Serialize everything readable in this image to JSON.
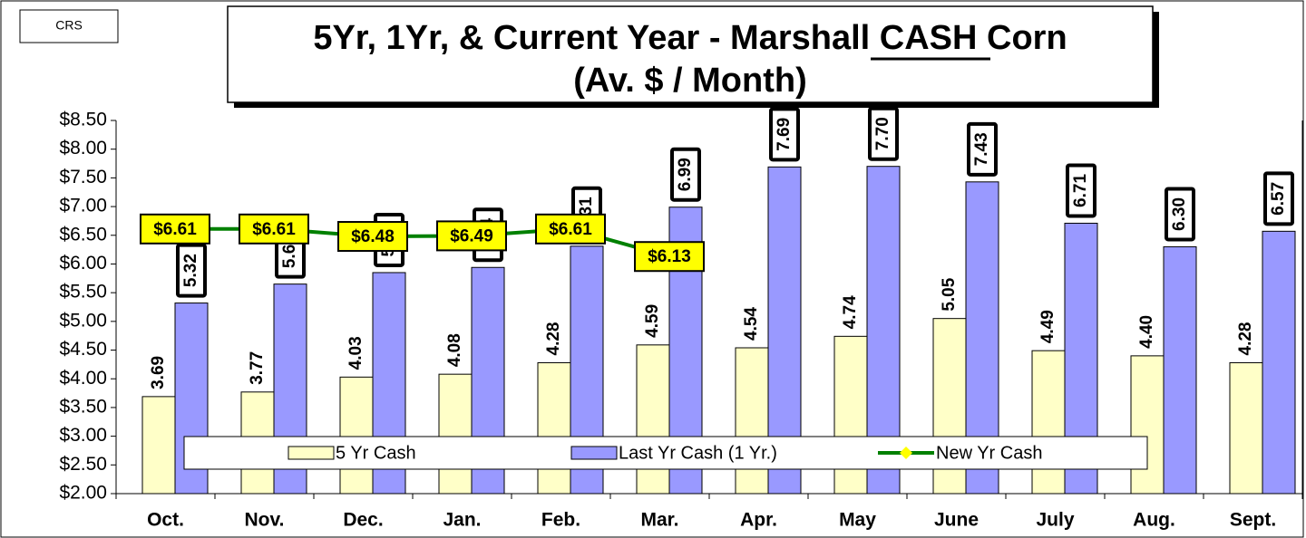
{
  "chart_data": {
    "type": "bar",
    "badge": "CRS",
    "title": "5Yr, 1Yr, & Current Year - Marshall CASH Corn",
    "subtitle": "(Av. $ / Month)",
    "categories": [
      "Oct.",
      "Nov.",
      "Dec.",
      "Jan.",
      "Feb.",
      "Mar.",
      "Apr.",
      "May",
      "June",
      "July",
      "Aug.",
      "Sept."
    ],
    "series": [
      {
        "name": "5 Yr Cash",
        "type": "bar",
        "color": "#ffffc8",
        "values": [
          3.69,
          3.77,
          4.03,
          4.08,
          4.28,
          4.59,
          4.54,
          4.74,
          5.05,
          4.49,
          4.4,
          4.28
        ],
        "value_labels": [
          "3.69",
          "3.77",
          "4.03",
          "4.08",
          "4.28",
          "4.59",
          "4.54",
          "4.74",
          "5.05",
          "4.49",
          "4.40",
          "4.28"
        ]
      },
      {
        "name": "Last Yr Cash (1 Yr.)",
        "type": "bar",
        "color": "#9999ff",
        "values": [
          5.32,
          5.65,
          5.85,
          5.94,
          6.31,
          6.99,
          7.69,
          7.7,
          7.43,
          6.71,
          6.3,
          6.57
        ],
        "value_labels": [
          "5.32",
          "5.65",
          "5.85",
          "5.94",
          "6.31",
          "6.99",
          "7.69",
          "7.70",
          "7.43",
          "6.71",
          "6.30",
          "6.57"
        ]
      },
      {
        "name": "New Yr Cash",
        "type": "line",
        "color": "#008000",
        "marker_color": "#ffff00",
        "values": [
          6.61,
          6.61,
          6.48,
          6.49,
          6.61,
          6.13,
          null,
          null,
          null,
          null,
          null,
          null
        ],
        "value_labels": [
          "$6.61",
          "$6.61",
          "$6.48",
          "$6.49",
          "$6.61",
          "$6.13",
          null,
          null,
          null,
          null,
          null,
          null
        ]
      }
    ],
    "ylim": [
      2.0,
      8.5
    ],
    "yticks": [
      {
        "value": 2.0,
        "label": "$2.00"
      },
      {
        "value": 2.5,
        "label": "$2.50"
      },
      {
        "value": 3.0,
        "label": "$3.00"
      },
      {
        "value": 3.5,
        "label": "$3.50"
      },
      {
        "value": 4.0,
        "label": "$4.00"
      },
      {
        "value": 4.5,
        "label": "$4.50"
      },
      {
        "value": 5.0,
        "label": "$5.00"
      },
      {
        "value": 5.5,
        "label": "$5.50"
      },
      {
        "value": 6.0,
        "label": "$6.00"
      },
      {
        "value": 6.5,
        "label": "$6.50"
      },
      {
        "value": 7.0,
        "label": "$7.00"
      },
      {
        "value": 7.5,
        "label": "$7.50"
      },
      {
        "value": 8.0,
        "label": "$8.00"
      },
      {
        "value": 8.5,
        "label": "$8.50"
      }
    ],
    "grid": false,
    "legend": "bottom"
  }
}
